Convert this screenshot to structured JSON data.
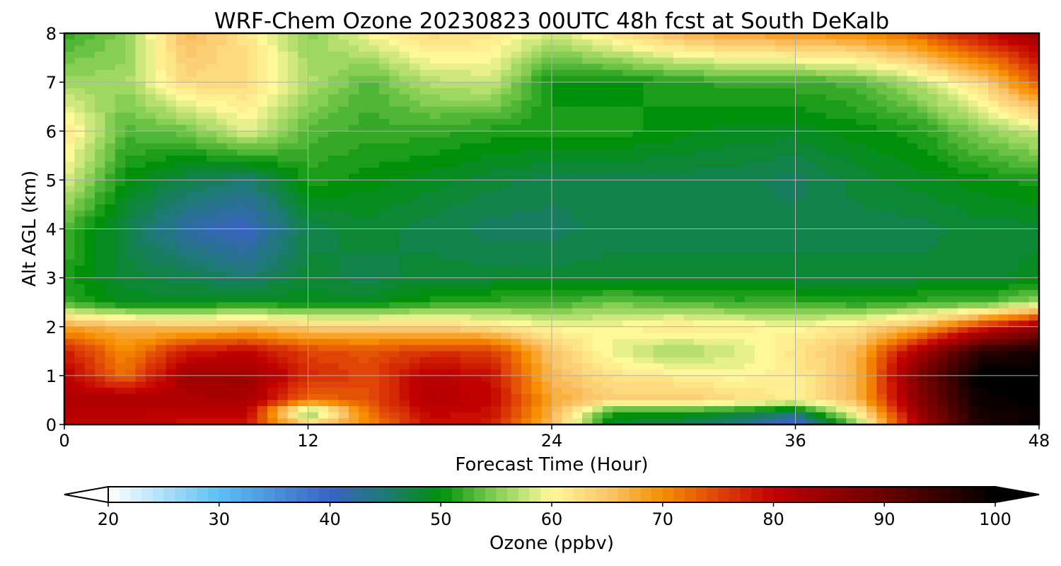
{
  "chart_data": {
    "type": "heatmap",
    "title": "WRF-Chem Ozone  20230823 00UTC 48h fcst at South DeKalb",
    "xlabel": "Forecast Time (Hour)",
    "ylabel": "Alt AGL (km)",
    "xlim": [
      0,
      48
    ],
    "ylim": [
      0,
      8
    ],
    "x_ticks": [
      0,
      12,
      24,
      36,
      48
    ],
    "y_ticks": [
      0,
      1,
      2,
      3,
      4,
      5,
      6,
      7,
      8
    ],
    "grid": true,
    "x": [
      0,
      3,
      6,
      9,
      12,
      15,
      18,
      21,
      24,
      27,
      30,
      33,
      36,
      39,
      42,
      45,
      48
    ],
    "y": [
      0,
      0.25,
      0.5,
      1,
      1.5,
      2,
      2.5,
      3,
      4,
      5,
      6,
      7,
      8
    ],
    "z": [
      [
        80,
        80,
        79,
        78,
        64,
        70,
        79,
        78,
        66,
        48,
        47,
        44,
        38,
        55,
        82,
        97,
        99
      ],
      [
        81,
        81,
        80,
        80,
        53,
        72,
        80,
        79,
        67,
        51,
        51,
        49,
        46,
        60,
        84,
        98,
        99
      ],
      [
        82,
        83,
        82,
        83,
        72,
        74,
        82,
        80,
        68,
        64,
        65,
        63,
        61,
        66,
        86,
        99,
        100
      ],
      [
        81,
        72,
        84,
        84,
        77,
        75,
        81,
        79,
        66,
        62,
        61,
        60,
        61,
        66,
        88,
        100,
        100
      ],
      [
        78,
        70,
        78,
        80,
        75,
        74,
        76,
        76,
        65,
        59,
        56,
        58,
        62,
        66,
        82,
        96,
        98
      ],
      [
        68,
        66,
        65,
        66,
        64,
        64,
        64,
        62,
        60,
        60,
        62,
        61,
        60,
        62,
        66,
        76,
        85
      ],
      [
        52,
        49,
        49,
        50,
        49,
        49,
        51,
        52,
        52,
        54,
        53,
        52,
        52,
        51,
        52,
        52,
        56
      ],
      [
        51,
        48,
        47,
        45,
        48,
        47,
        48,
        48,
        48,
        48,
        48,
        48,
        48,
        48,
        48,
        48,
        49
      ],
      [
        53,
        47,
        42,
        40,
        47,
        48,
        47,
        46,
        46,
        47,
        47,
        47,
        47,
        47,
        47,
        48,
        48
      ],
      [
        59,
        50,
        47,
        45,
        51,
        50,
        49,
        48,
        47,
        47,
        47,
        47,
        46,
        48,
        49,
        50,
        51
      ],
      [
        62,
        53,
        54,
        59,
        53,
        52,
        52,
        51,
        51,
        51,
        50,
        49,
        49,
        50,
        51,
        55,
        58
      ],
      [
        56,
        56,
        63,
        63,
        57,
        53,
        57,
        58,
        50,
        50,
        51,
        52,
        52,
        53,
        57,
        63,
        74
      ],
      [
        52,
        55,
        66,
        62,
        55,
        60,
        63,
        62,
        58,
        62,
        66,
        68,
        69,
        70,
        73,
        79,
        84
      ]
    ],
    "colorbar": {
      "label": "Ozone  (ppbv)",
      "min": 20,
      "max": 100,
      "ticks": [
        20,
        30,
        40,
        50,
        60,
        70,
        80,
        90,
        100
      ],
      "extend": "both",
      "colors": [
        {
          "v": 20,
          "c": "#ffffff"
        },
        {
          "v": 30,
          "c": "#5bc0f4"
        },
        {
          "v": 40,
          "c": "#3a62c4"
        },
        {
          "v": 45,
          "c": "#1e7a74"
        },
        {
          "v": 50,
          "c": "#00900b"
        },
        {
          "v": 55,
          "c": "#86cf54"
        },
        {
          "v": 60,
          "c": "#fff89a"
        },
        {
          "v": 65,
          "c": "#fbc66b"
        },
        {
          "v": 70,
          "c": "#f68e00"
        },
        {
          "v": 75,
          "c": "#e04406"
        },
        {
          "v": 80,
          "c": "#c10000"
        },
        {
          "v": 90,
          "c": "#6a0000"
        },
        {
          "v": 100,
          "c": "#000000"
        }
      ]
    }
  }
}
